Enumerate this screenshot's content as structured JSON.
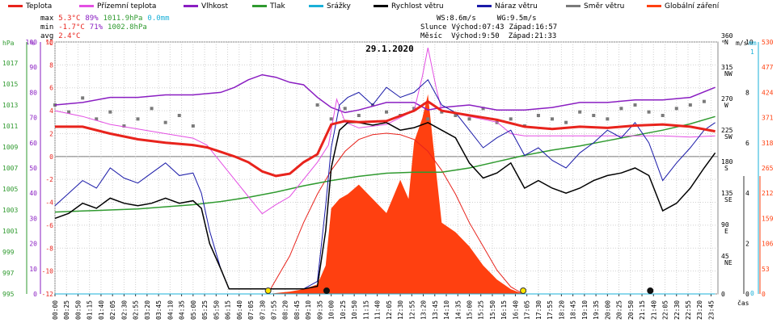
{
  "legend": [
    {
      "label": "Teplota",
      "color": "#e8231c"
    },
    {
      "label": "Přízemní teplota",
      "color": "#e34fe3"
    },
    {
      "label": "Vlhkost",
      "color": "#8a1ec2"
    },
    {
      "label": "Tlak",
      "color": "#2f9a2f"
    },
    {
      "label": "Srážky",
      "color": "#1ab0d8"
    },
    {
      "label": "Rychlost větru",
      "color": "#000000"
    },
    {
      "label": "Náraz větru",
      "color": "#1a1aa8"
    },
    {
      "label": "Směr větru",
      "color": "#7a7a7a"
    },
    {
      "label": "Globální záření",
      "color": "#ff4010"
    }
  ],
  "stats": {
    "max_label": "max",
    "max_temp": "5.3°C",
    "max_hum": "89%",
    "max_press": "1011.9hPa",
    "max_rain": "0.0mm",
    "min_label": "min",
    "min_temp": "-1.7°C",
    "min_hum": "71%",
    "min_press": "1002.8hPa",
    "avg_label": "avg",
    "avg_temp": "2.4°C",
    "ws": "WS:8.6m/s",
    "wg": "WG:9.5m/s",
    "sun_label": "Slunce",
    "sun_rise": "Východ:07:43",
    "sun_set": "Západ:16:57",
    "moon_label": "Měsíc",
    "moon_rise": "Východ:9:50",
    "moon_set": "Západ:21:33"
  },
  "chart_data": {
    "type": "line",
    "title": "29.1.2020",
    "xlabel": "čas",
    "x_ticks": [
      "00:00",
      "00:25",
      "00:50",
      "01:15",
      "01:40",
      "02:05",
      "02:30",
      "02:55",
      "03:20",
      "03:45",
      "04:10",
      "04:35",
      "05:00",
      "05:25",
      "05:50",
      "06:15",
      "06:40",
      "07:05",
      "07:30",
      "07:55",
      "08:20",
      "08:45",
      "09:10",
      "09:35",
      "10:00",
      "10:25",
      "10:50",
      "11:15",
      "11:40",
      "12:05",
      "12:30",
      "12:55",
      "13:20",
      "13:45",
      "14:10",
      "14:35",
      "15:00",
      "15:25",
      "15:50",
      "16:15",
      "16:40",
      "17:05",
      "17:30",
      "17:55",
      "18:20",
      "18:45",
      "19:10",
      "19:35",
      "20:00",
      "20:25",
      "20:50",
      "21:15",
      "21:40",
      "22:05",
      "22:30",
      "22:55",
      "23:20",
      "23:45"
    ],
    "axes": {
      "pressure": {
        "unit": "hPa",
        "range": [
          995,
          1019
        ],
        "ticks": [
          "995",
          "997",
          "999",
          "1001",
          "1003",
          "1005",
          "1007",
          "1009",
          "1011",
          "1013",
          "1015",
          "1017"
        ]
      },
      "humidity": {
        "unit": "%",
        "range": [
          0,
          100
        ],
        "ticks": [
          "0",
          "10",
          "20",
          "30",
          "40",
          "50",
          "60",
          "70",
          "80",
          "90",
          "100"
        ]
      },
      "temperature": {
        "unit": "°C",
        "range": [
          -12,
          10
        ],
        "ticks": [
          "-12",
          "-10",
          "-8",
          "-6",
          "-4",
          "-2",
          "0",
          "2",
          "4",
          "6",
          "8",
          "10"
        ]
      },
      "direction": {
        "unit": "°",
        "ticks": [
          "0",
          "45 NE",
          "90 E",
          "135 SE",
          "180 S",
          "225 SW",
          "270 W",
          "315 NW",
          "360 N"
        ]
      },
      "wind": {
        "unit": "m/s",
        "range": [
          0,
          10
        ],
        "ticks": [
          "0",
          "2",
          "4",
          "6",
          "8",
          "10"
        ]
      },
      "rain": {
        "unit": "mm",
        "range": [
          0,
          1
        ],
        "ticks": [
          "0",
          "1"
        ]
      },
      "radiation": {
        "unit": "W/m²",
        "range": [
          0,
          530
        ],
        "ticks": [
          "0",
          "53",
          "106",
          "159",
          "212",
          "265",
          "318",
          "371",
          "424",
          "477",
          "530"
        ]
      }
    },
    "series": [
      {
        "name": "Teplota",
        "unit": "°C",
        "x": [
          0,
          1,
          2,
          3,
          4,
          5,
          5.5,
          6,
          6.5,
          7,
          7.5,
          8,
          8.5,
          9,
          9.5,
          10,
          10.5,
          11,
          12,
          13,
          13.5,
          14,
          15,
          16,
          17,
          18,
          19,
          20,
          21,
          22,
          23,
          23.9
        ],
        "values": [
          2.6,
          2.6,
          2.0,
          1.5,
          1.2,
          1.0,
          0.8,
          0.4,
          0.0,
          -0.5,
          -1.3,
          -1.7,
          -1.5,
          -0.5,
          0.2,
          2.8,
          3.1,
          3.0,
          3.1,
          4.0,
          4.8,
          4.0,
          3.6,
          3.2,
          2.6,
          2.4,
          2.6,
          2.5,
          2.7,
          2.8,
          2.6,
          2.2
        ]
      },
      {
        "name": "Přízemní teplota",
        "unit": "°C",
        "x": [
          0,
          1,
          2,
          3,
          4,
          5,
          5.5,
          6,
          6.5,
          7,
          7.5,
          8,
          8.5,
          9,
          9.5,
          9.9,
          10.2,
          10.5,
          11,
          12,
          13,
          13.3,
          13.5,
          13.8,
          14,
          15,
          16,
          16.5,
          17,
          18,
          19,
          20,
          21,
          22,
          23,
          23.9
        ],
        "values": [
          4.0,
          3.5,
          2.8,
          2.4,
          2.0,
          1.6,
          1.0,
          -0.5,
          -2.0,
          -3.5,
          -5.0,
          -4.2,
          -3.5,
          -2.0,
          -0.5,
          1.0,
          5.0,
          3.0,
          2.5,
          2.8,
          4.0,
          7.0,
          9.5,
          6.0,
          4.0,
          3.5,
          3.0,
          2.0,
          1.8,
          1.8,
          1.8,
          1.8,
          1.8,
          1.8,
          1.7,
          1.8
        ]
      },
      {
        "name": "Vlhkost",
        "unit": "%",
        "x": [
          0,
          1,
          2,
          3,
          4,
          5,
          6,
          6.5,
          7,
          7.5,
          8,
          8.5,
          9,
          9.5,
          10,
          10.5,
          11,
          12,
          13,
          13.5,
          14,
          15,
          16,
          17,
          18,
          19,
          20,
          21,
          22,
          23,
          23.9
        ],
        "values": [
          75,
          76,
          78,
          78,
          79,
          79,
          80,
          82,
          85,
          87,
          86,
          84,
          83,
          78,
          74,
          72,
          73,
          76,
          76,
          73,
          74,
          75,
          73,
          73,
          74,
          76,
          76,
          77,
          77,
          78,
          82
        ]
      },
      {
        "name": "Tlak",
        "unit": "hPa",
        "x": [
          0,
          1,
          2,
          3,
          4,
          5,
          6,
          7,
          8,
          9,
          10,
          11,
          12,
          13,
          14,
          15,
          16,
          17,
          18,
          19,
          20,
          21,
          22,
          23,
          23.9
        ],
        "values": [
          1002.8,
          1002.9,
          1003.0,
          1003.1,
          1003.3,
          1003.5,
          1003.8,
          1004.2,
          1004.7,
          1005.3,
          1005.8,
          1006.2,
          1006.5,
          1006.6,
          1006.6,
          1007.0,
          1007.6,
          1008.2,
          1008.7,
          1009.1,
          1009.6,
          1010.1,
          1010.6,
          1011.2,
          1011.9
        ]
      },
      {
        "name": "Srážky",
        "unit": "mm",
        "x": [
          0,
          23.9
        ],
        "values": [
          0.0,
          0.0
        ]
      },
      {
        "name": "Rychlost větru",
        "unit": "m/s",
        "x": [
          0,
          0.5,
          1,
          1.5,
          2,
          2.5,
          3,
          3.5,
          4,
          4.5,
          5,
          5.3,
          5.6,
          6,
          6.3,
          6.6,
          7,
          8,
          9,
          9.5,
          9.8,
          10,
          10.3,
          10.6,
          11,
          11.5,
          12,
          12.5,
          13,
          13.5,
          14,
          14.5,
          15,
          15.5,
          16,
          16.5,
          17,
          17.5,
          18,
          18.5,
          19,
          19.5,
          20,
          20.5,
          21,
          21.5,
          22,
          22.5,
          23,
          23.5,
          23.9
        ],
        "values": [
          3.0,
          3.2,
          3.6,
          3.4,
          3.8,
          3.6,
          3.5,
          3.6,
          3.8,
          3.6,
          3.7,
          3.4,
          2.0,
          1.0,
          0.2,
          0.2,
          0.2,
          0.2,
          0.2,
          0.3,
          2.5,
          5.0,
          6.5,
          6.8,
          6.8,
          6.7,
          6.8,
          6.5,
          6.6,
          6.8,
          6.5,
          6.2,
          5.2,
          4.6,
          4.8,
          5.2,
          4.2,
          4.5,
          4.2,
          4.0,
          4.2,
          4.5,
          4.7,
          4.8,
          5.0,
          4.7,
          3.3,
          3.6,
          4.2,
          5.0,
          5.6
        ]
      },
      {
        "name": "Náraz větru",
        "unit": "m/s",
        "x": [
          0,
          0.5,
          1,
          1.5,
          2,
          2.5,
          3,
          3.5,
          4,
          4.5,
          5,
          5.3,
          5.6,
          6,
          6.3,
          7,
          8,
          9,
          9.5,
          9.8,
          10,
          10.3,
          10.6,
          11,
          11.5,
          12,
          12.5,
          13,
          13.5,
          14,
          14.5,
          15,
          15.5,
          16,
          16.5,
          17,
          17.5,
          18,
          18.5,
          19,
          19.5,
          20,
          20.5,
          21,
          21.5,
          22,
          22.5,
          23,
          23.5,
          23.9
        ],
        "values": [
          3.5,
          4.0,
          4.5,
          4.2,
          5.0,
          4.6,
          4.4,
          4.8,
          5.2,
          4.7,
          4.8,
          4.0,
          2.5,
          1.0,
          0.2,
          0.2,
          0.2,
          0.2,
          0.5,
          3.5,
          5.8,
          7.5,
          7.8,
          8.0,
          7.5,
          8.2,
          7.8,
          8.0,
          8.5,
          7.5,
          7.2,
          6.5,
          5.8,
          6.2,
          6.5,
          5.5,
          5.8,
          5.3,
          5.0,
          5.6,
          6.0,
          6.5,
          6.2,
          6.8,
          6.0,
          4.5,
          5.2,
          5.8,
          6.5,
          6.8
        ]
      },
      {
        "name": "Globální záření",
        "unit": "W/m²",
        "x": [
          7.7,
          8.5,
          9,
          9.5,
          9.8,
          10,
          10.3,
          10.6,
          11,
          11.5,
          12,
          12.5,
          12.8,
          13,
          13.3,
          13.5,
          13.7,
          14,
          14.5,
          15,
          15.5,
          16,
          16.5,
          16.95
        ],
        "values": [
          0,
          5,
          10,
          20,
          60,
          180,
          200,
          210,
          230,
          200,
          170,
          240,
          200,
          320,
          370,
          420,
          310,
          150,
          130,
          100,
          60,
          30,
          10,
          0
        ]
      },
      {
        "name": "Globální záření (teoretické)",
        "unit": "W/m²",
        "x": [
          7.7,
          8.5,
          9,
          9.5,
          10,
          10.5,
          11,
          11.5,
          12,
          12.5,
          13,
          13.5,
          14,
          14.5,
          15,
          15.5,
          16,
          16.5,
          16.95
        ],
        "values": [
          0,
          80,
          150,
          210,
          260,
          300,
          325,
          335,
          338,
          335,
          325,
          300,
          260,
          210,
          150,
          100,
          50,
          15,
          0
        ]
      },
      {
        "name": "Směr větru",
        "unit": "°",
        "x": [
          0,
          0.5,
          1,
          1.5,
          2,
          2.5,
          3,
          3.5,
          4,
          4.5,
          5,
          9.5,
          10,
          10.5,
          11,
          11.5,
          12,
          12.5,
          13,
          13.5,
          14,
          14.5,
          15,
          15.5,
          16,
          16.5,
          17,
          17.5,
          18,
          18.5,
          19,
          19.5,
          20,
          20.5,
          21,
          21.5,
          22,
          22.5,
          23,
          23.5
        ],
        "values": [
          270,
          260,
          280,
          250,
          260,
          240,
          250,
          265,
          245,
          255,
          240,
          270,
          250,
          265,
          255,
          270,
          260,
          255,
          265,
          250,
          260,
          255,
          250,
          265,
          245,
          250,
          240,
          255,
          250,
          245,
          260,
          255,
          250,
          265,
          270,
          260,
          255,
          265,
          270,
          275
        ]
      }
    ]
  }
}
